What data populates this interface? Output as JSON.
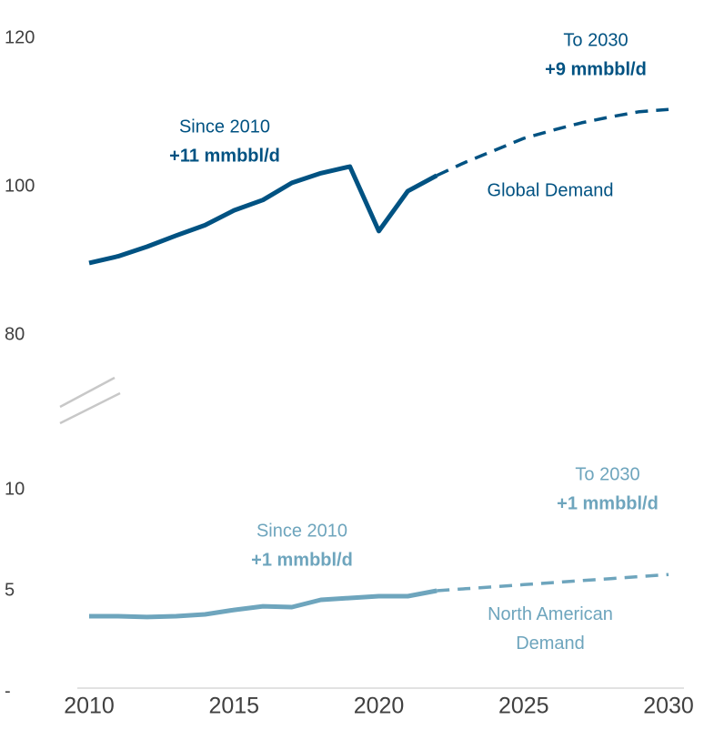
{
  "chart_data": [
    {
      "type": "line",
      "x": [
        2010,
        2011,
        2012,
        2013,
        2014,
        2015,
        2016,
        2017,
        2018,
        2019,
        2020,
        2021,
        2022,
        2023,
        2024,
        2025,
        2026,
        2027,
        2028,
        2029,
        2030
      ],
      "xlim": [
        2010,
        2030
      ],
      "ylim": [
        80,
        120
      ],
      "yticks": [
        80,
        100,
        120
      ],
      "series": [
        {
          "name": "Global Demand",
          "color": "#005282",
          "dashed": false,
          "values": [
            89.7,
            90.6,
            91.9,
            93.4,
            94.8,
            96.8,
            98.2,
            100.5,
            101.8,
            102.7,
            94.0,
            99.4,
            101.5,
            null,
            null,
            null,
            null,
            null,
            null,
            null,
            null
          ]
        },
        {
          "color": "#005282",
          "dashed": true,
          "values": [
            null,
            null,
            null,
            null,
            null,
            null,
            null,
            null,
            null,
            null,
            null,
            null,
            101.5,
            103.3,
            104.9,
            106.5,
            107.6,
            108.6,
            109.4,
            110.1,
            110.4
          ]
        }
      ],
      "annotations": [
        {
          "color": "#005282",
          "lines": [
            "Since 2010",
            "+11 mmbbl/d"
          ]
        },
        {
          "color": "#005282",
          "lines": [
            "To 2030",
            "+9 mmbbl/d"
          ]
        }
      ]
    },
    {
      "type": "line",
      "x": [
        2010,
        2011,
        2012,
        2013,
        2014,
        2015,
        2016,
        2017,
        2018,
        2019,
        2020,
        2021,
        2022,
        2023,
        2024,
        2025,
        2026,
        2027,
        2028,
        2029,
        2030
      ],
      "xlim": [
        2010,
        2030
      ],
      "xticks": [
        2010,
        2015,
        2020,
        2025,
        2030
      ],
      "ylim": [
        0,
        10
      ],
      "yticks": [
        {
          "value": 0,
          "label": "-"
        },
        5,
        10
      ],
      "series": [
        {
          "name": "North American Demand",
          "color": "#6ea5bd",
          "dashed": false,
          "values": [
            3.74,
            3.74,
            3.7,
            3.74,
            3.83,
            4.05,
            4.23,
            4.19,
            4.55,
            4.64,
            4.73,
            4.73,
            5.0,
            null,
            null,
            null,
            null,
            null,
            null,
            null,
            null
          ]
        },
        {
          "color": "#6ea5bd",
          "dashed": true,
          "values": [
            null,
            null,
            null,
            null,
            null,
            null,
            null,
            null,
            null,
            null,
            null,
            null,
            5.0,
            5.1,
            5.2,
            5.3,
            5.4,
            5.5,
            5.6,
            5.7,
            5.8
          ]
        }
      ],
      "annotations": [
        {
          "color": "#6ea5bd",
          "lines": [
            "Since 2010",
            "+1 mmbbl/d"
          ]
        },
        {
          "color": "#6ea5bd",
          "lines": [
            "To 2030",
            "+1 mmbbl/d"
          ]
        }
      ]
    }
  ]
}
